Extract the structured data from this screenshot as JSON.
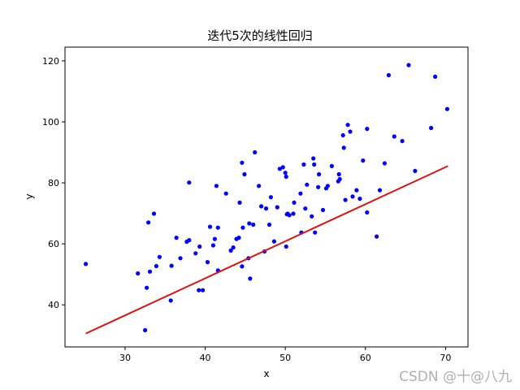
{
  "watermark": "CSDN @十@八九",
  "chart_data": {
    "type": "scatter",
    "title": "迭代5次的线性回归",
    "xlabel": "x",
    "ylabel": "y",
    "xlim": [
      22.5,
      72.8
    ],
    "ylim": [
      26.2,
      124.5
    ],
    "xticks": [
      30,
      40,
      50,
      60,
      70
    ],
    "yticks": [
      40,
      60,
      80,
      100,
      120
    ],
    "grid": false,
    "point_color": "#0000ff",
    "line_color": "#e01010",
    "series": [
      {
        "type": "scatter",
        "points": [
          [
            25.1,
            53.4
          ],
          [
            31.6,
            50.3
          ],
          [
            32.5,
            31.7
          ],
          [
            32.7,
            45.6
          ],
          [
            32.9,
            67.0
          ],
          [
            33.1,
            50.9
          ],
          [
            33.6,
            69.9
          ],
          [
            33.9,
            52.7
          ],
          [
            34.3,
            55.7
          ],
          [
            35.7,
            41.4
          ],
          [
            35.8,
            52.8
          ],
          [
            36.4,
            62.0
          ],
          [
            36.9,
            55.3
          ],
          [
            37.7,
            60.7
          ],
          [
            38.0,
            61.2
          ],
          [
            38.0,
            80.1
          ],
          [
            38.8,
            56.9
          ],
          [
            39.2,
            44.8
          ],
          [
            39.3,
            59.1
          ],
          [
            39.7,
            44.8
          ],
          [
            40.3,
            54.0
          ],
          [
            40.6,
            65.6
          ],
          [
            41.0,
            59.5
          ],
          [
            41.2,
            61.6
          ],
          [
            41.4,
            79.0
          ],
          [
            41.6,
            65.3
          ],
          [
            41.6,
            51.3
          ],
          [
            42.6,
            76.5
          ],
          [
            43.2,
            57.8
          ],
          [
            43.5,
            58.8
          ],
          [
            43.9,
            61.6
          ],
          [
            44.2,
            62.0
          ],
          [
            44.3,
            73.5
          ],
          [
            44.6,
            52.6
          ],
          [
            44.6,
            86.6
          ],
          [
            44.7,
            65.3
          ],
          [
            44.9,
            82.8
          ],
          [
            45.4,
            55.3
          ],
          [
            45.5,
            66.7
          ],
          [
            45.6,
            48.6
          ],
          [
            46.0,
            66.3
          ],
          [
            46.2,
            90.0
          ],
          [
            46.7,
            79.0
          ],
          [
            47.0,
            72.3
          ],
          [
            47.4,
            57.5
          ],
          [
            47.6,
            71.6
          ],
          [
            48.0,
            66.3
          ],
          [
            48.2,
            75.3
          ],
          [
            48.6,
            60.8
          ],
          [
            49.0,
            72.0
          ],
          [
            49.3,
            84.6
          ],
          [
            49.7,
            85.1
          ],
          [
            50.0,
            83.3
          ],
          [
            50.1,
            82.0
          ],
          [
            50.1,
            59.1
          ],
          [
            50.2,
            69.7
          ],
          [
            50.3,
            69.9
          ],
          [
            50.5,
            69.4
          ],
          [
            51.0,
            69.9
          ],
          [
            51.1,
            73.5
          ],
          [
            51.9,
            76.5
          ],
          [
            52.0,
            63.7
          ],
          [
            52.3,
            86.0
          ],
          [
            52.5,
            71.6
          ],
          [
            52.7,
            79.4
          ],
          [
            53.3,
            69.0
          ],
          [
            53.5,
            88.0
          ],
          [
            53.6,
            86.0
          ],
          [
            53.7,
            63.7
          ],
          [
            54.1,
            78.6
          ],
          [
            54.2,
            82.8
          ],
          [
            54.7,
            71.1
          ],
          [
            55.1,
            78.2
          ],
          [
            55.3,
            79.0
          ],
          [
            55.8,
            85.5
          ],
          [
            56.6,
            80.5
          ],
          [
            56.7,
            82.8
          ],
          [
            56.8,
            81.2
          ],
          [
            57.2,
            95.6
          ],
          [
            57.3,
            91.5
          ],
          [
            57.5,
            74.4
          ],
          [
            57.8,
            99.0
          ],
          [
            58.1,
            96.8
          ],
          [
            58.4,
            75.5
          ],
          [
            58.9,
            77.6
          ],
          [
            59.3,
            74.8
          ],
          [
            59.7,
            87.3
          ],
          [
            60.2,
            97.7
          ],
          [
            60.2,
            70.3
          ],
          [
            61.4,
            62.4
          ],
          [
            61.8,
            77.6
          ],
          [
            62.4,
            86.4
          ],
          [
            62.9,
            115.3
          ],
          [
            63.6,
            95.2
          ],
          [
            64.6,
            93.7
          ],
          [
            65.4,
            118.6
          ],
          [
            66.2,
            83.9
          ],
          [
            68.2,
            98.0
          ],
          [
            68.7,
            114.8
          ],
          [
            70.2,
            104.2
          ]
        ]
      },
      {
        "type": "line",
        "points": [
          [
            25.1,
            30.6
          ],
          [
            70.3,
            85.5
          ]
        ]
      }
    ]
  }
}
